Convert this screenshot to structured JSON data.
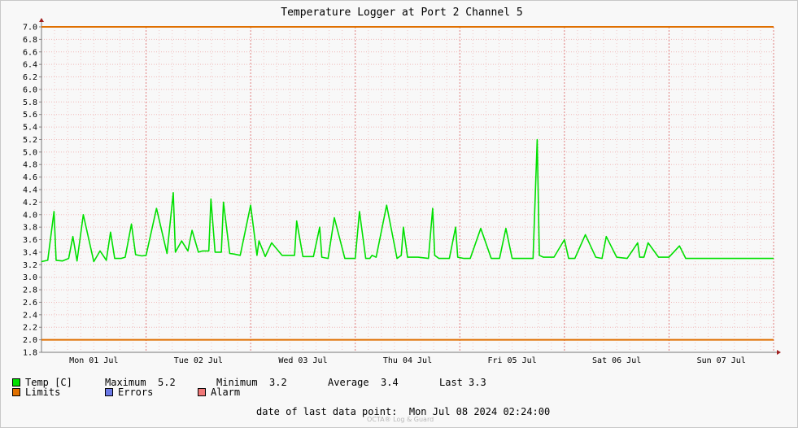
{
  "chart_data": {
    "type": "line",
    "title": "Temperature Logger at Port 2 Channel 5",
    "ylim": [
      1.8,
      7.0
    ],
    "y_ticks": [
      "7.0",
      "6.8",
      "6.6",
      "6.4",
      "6.2",
      "6.0",
      "5.8",
      "5.6",
      "5.4",
      "5.2",
      "5.0",
      "4.8",
      "4.6",
      "4.4",
      "4.2",
      "4.0",
      "3.8",
      "3.6",
      "3.4",
      "3.2",
      "3.0",
      "2.8",
      "2.6",
      "2.4",
      "2.2",
      "2.0",
      "1.8"
    ],
    "x_labels": [
      "Mon 01 Jul",
      "Tue 02 Jul",
      "Wed 03 Jul",
      "Thu 04 Jul",
      "Fri 05 Jul",
      "Sat 06 Jul",
      "Sun 07 Jul"
    ],
    "grid": true,
    "limits": [
      7.0,
      2.0
    ],
    "series": [
      {
        "name": "Temp [C]",
        "color": "#00e000",
        "x": [
          0,
          0.06,
          0.12,
          0.14,
          0.2,
          0.26,
          0.3,
          0.34,
          0.4,
          0.5,
          0.56,
          0.62,
          0.66,
          0.7,
          0.72,
          0.76,
          0.8,
          0.86,
          0.9,
          0.96,
          1.0,
          1.1,
          1.2,
          1.26,
          1.28,
          1.34,
          1.4,
          1.44,
          1.5,
          1.54,
          1.6,
          1.62,
          1.66,
          1.7,
          1.72,
          1.74,
          1.8,
          1.84,
          1.9,
          2.0,
          2.06,
          2.08,
          2.14,
          2.2,
          2.3,
          2.42,
          2.44,
          2.5,
          2.6,
          2.66,
          2.68,
          2.74,
          2.8,
          2.9,
          3.0,
          3.04,
          3.1,
          3.14,
          3.16,
          3.2,
          3.3,
          3.4,
          3.44,
          3.46,
          3.5,
          3.6,
          3.7,
          3.74,
          3.76,
          3.8,
          3.9,
          3.96,
          3.98,
          4.04,
          4.1,
          4.2,
          4.3,
          4.36,
          4.38,
          4.44,
          4.5,
          4.6,
          4.7,
          4.74,
          4.76,
          4.8,
          4.9,
          5.0,
          5.04,
          5.1,
          5.2,
          5.3,
          5.36,
          5.4,
          5.5,
          5.6,
          5.7,
          5.72,
          5.76,
          5.8,
          5.9,
          6.0,
          6.1,
          6.16,
          6.2,
          6.3,
          6.4,
          6.5,
          6.56,
          6.6,
          6.7,
          6.8,
          6.86,
          6.9,
          7.0
        ],
        "values": [
          3.25,
          3.27,
          4.05,
          3.27,
          3.26,
          3.3,
          3.65,
          3.26,
          4.0,
          3.25,
          3.42,
          3.27,
          3.72,
          3.3,
          3.3,
          3.3,
          3.32,
          3.85,
          3.36,
          3.34,
          3.35,
          4.1,
          3.38,
          4.35,
          3.4,
          3.58,
          3.42,
          3.75,
          3.4,
          3.42,
          3.42,
          4.25,
          3.4,
          3.4,
          3.4,
          4.2,
          3.38,
          3.37,
          3.35,
          4.15,
          3.35,
          3.58,
          3.33,
          3.55,
          3.35,
          3.35,
          3.9,
          3.33,
          3.33,
          3.8,
          3.32,
          3.3,
          3.95,
          3.3,
          3.3,
          4.05,
          3.3,
          3.3,
          3.35,
          3.32,
          4.15,
          3.3,
          3.35,
          3.8,
          3.32,
          3.32,
          3.3,
          4.1,
          3.35,
          3.3,
          3.3,
          3.8,
          3.32,
          3.3,
          3.3,
          3.78,
          3.3,
          3.3,
          3.3,
          3.78,
          3.3,
          3.3,
          3.3,
          5.2,
          3.35,
          3.32,
          3.32,
          3.6,
          3.3,
          3.3,
          3.68,
          3.32,
          3.3,
          3.65,
          3.32,
          3.3,
          3.55,
          3.32,
          3.32,
          3.55,
          3.32,
          3.32,
          3.5,
          3.3,
          3.3,
          3.3,
          3.3,
          3.3,
          3.3,
          3.3,
          3.3,
          3.3,
          3.3,
          3.3,
          3.3
        ]
      }
    ]
  },
  "legend": {
    "temp_label": "Temp [C]",
    "temp_color": "#00e000",
    "max_label": "Maximum",
    "max_value": "5.2",
    "min_label": "Minimum",
    "min_value": "3.2",
    "avg_label": "Average",
    "avg_value": "3.4",
    "last_label": "Last",
    "last_value": "3.3",
    "limits_label": "Limits",
    "limits_color": "#e07000",
    "errors_label": "Errors",
    "errors_color": "#6a78e6",
    "alarm_label": "Alarm",
    "alarm_color": "#f07878"
  },
  "footer": {
    "date_label": "date of last data point:",
    "date_value": "Mon Jul 08 2024 02:24:00",
    "brand": "OCTA® Log & Guard"
  }
}
